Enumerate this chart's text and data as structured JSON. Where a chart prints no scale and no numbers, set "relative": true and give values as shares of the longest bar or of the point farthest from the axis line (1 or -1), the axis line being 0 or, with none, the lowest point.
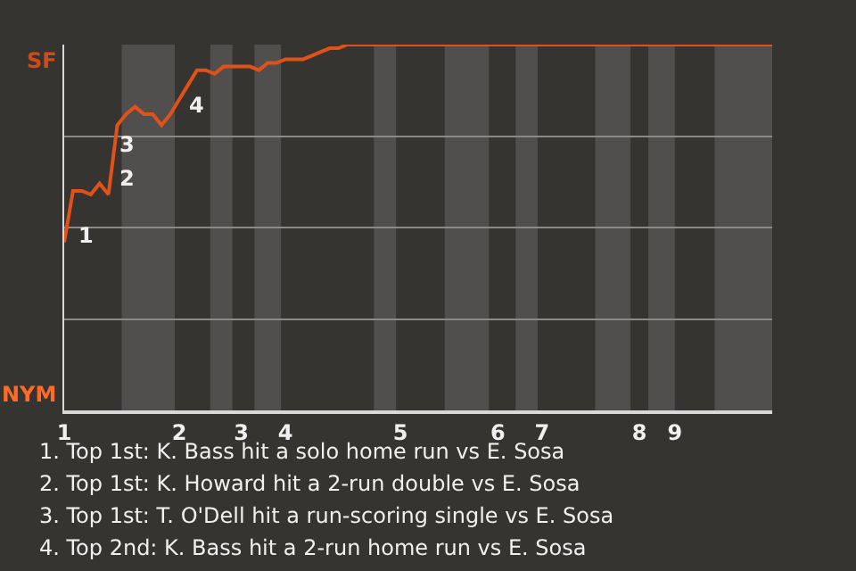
{
  "chart_data": {
    "type": "line",
    "relative": true,
    "categories": [
      "1",
      null,
      null,
      null,
      null,
      null,
      null,
      null,
      null,
      null,
      null,
      null,
      null,
      "2",
      null,
      null,
      null,
      null,
      null,
      null,
      "3",
      null,
      null,
      null,
      null,
      "4",
      null,
      null,
      null,
      null,
      null,
      null,
      null,
      null,
      null,
      null,
      null,
      null,
      "5",
      null,
      null,
      null,
      null,
      null,
      null,
      null,
      null,
      null,
      null,
      "6",
      null,
      null,
      null,
      null,
      "7",
      null,
      null,
      null,
      null,
      null,
      null,
      null,
      null,
      null,
      null,
      "8",
      null,
      null,
      null,
      "9",
      null,
      null,
      null,
      null,
      null,
      null,
      null,
      null,
      null,
      null,
      null
    ],
    "series": [
      {
        "color": "#e0521a",
        "values": [
          0.46,
          0.6,
          0.6,
          0.59,
          0.62,
          0.59,
          0.78,
          0.81,
          0.83,
          0.81,
          0.81,
          0.78,
          0.81,
          0.85,
          0.89,
          0.93,
          0.93,
          0.92,
          0.94,
          0.94,
          0.94,
          0.94,
          0.93,
          0.95,
          0.95,
          0.96,
          0.96,
          0.96,
          0.97,
          0.98,
          0.99,
          0.99,
          1,
          1,
          1,
          1,
          1,
          1,
          1,
          1,
          1,
          1,
          1,
          1,
          1,
          1,
          1,
          1,
          1,
          1,
          1,
          1,
          1,
          1,
          1,
          1,
          1,
          1,
          1,
          1,
          1,
          1,
          1,
          1,
          1,
          1,
          1,
          1,
          1,
          1,
          1,
          1,
          1,
          1,
          1,
          1,
          1,
          1,
          1,
          1,
          1
        ]
      }
    ],
    "grid": "y",
    "annotations": [
      "SF",
      "NYM",
      "1",
      "2",
      "3",
      "4",
      "1. Top 1st: K. Bass hit a solo home run vs E. Sosa",
      "2. Top 1st: K. Howard hit a 2-run double vs E. Sosa",
      "3. Top 1st: T. O'Dell hit a run-scoring single vs E. Sosa",
      "4. Top 2nd: K. Bass hit a 2-run home run vs E. Sosa"
    ]
  }
}
